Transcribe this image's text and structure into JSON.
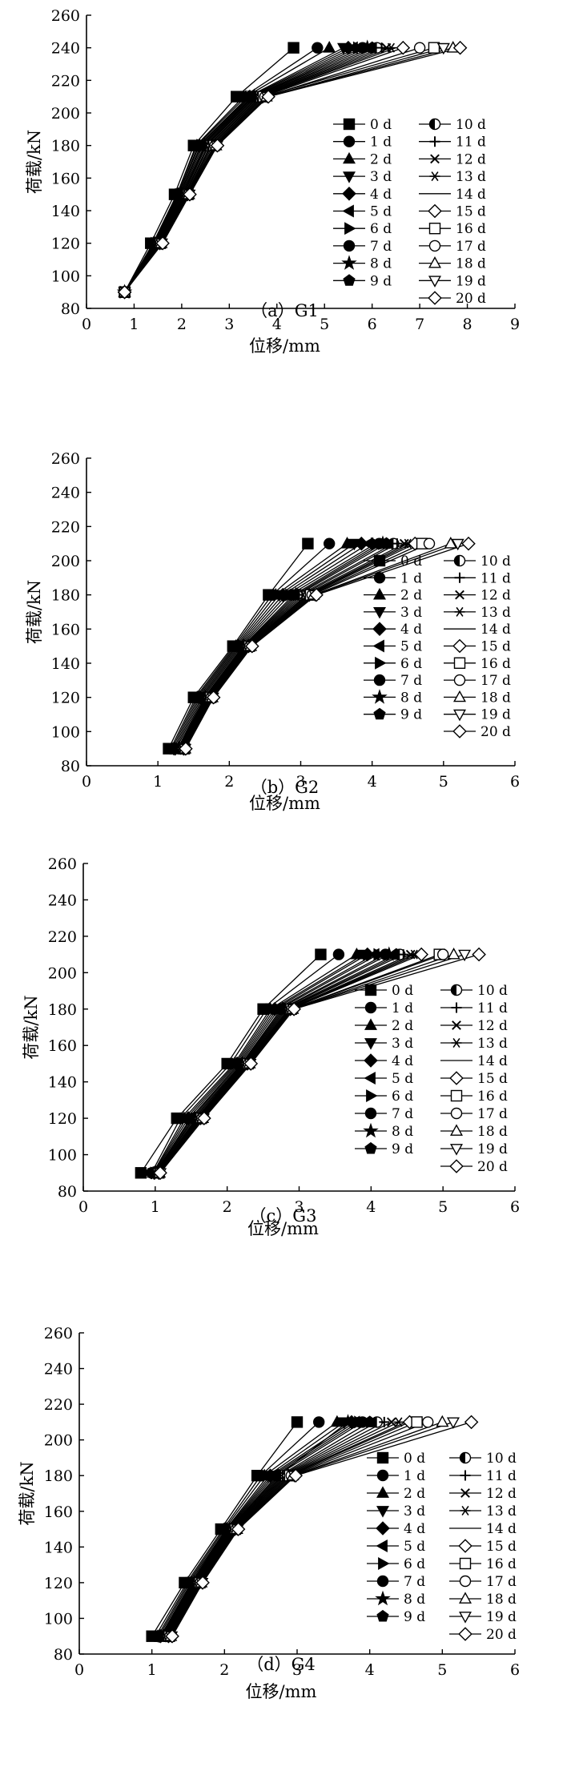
{
  "figure": {
    "marker_order": [
      "square",
      "circle",
      "triangle-up",
      "triangle-down",
      "diamond",
      "triangle-left",
      "triangle-right",
      "circle",
      "star",
      "pentagon",
      "half-circle",
      "plus",
      "cross",
      "asterisk",
      "none",
      "open-diamond",
      "open-square",
      "open-circle",
      "open-triangle-up",
      "open-triangle-down",
      "open-diamond"
    ]
  },
  "chart_data": [
    {
      "type": "line",
      "caption": "（a）G1",
      "xlabel": "位移/mm",
      "ylabel": "荷载/kN",
      "xlim": [
        0,
        9
      ],
      "ylim": [
        80,
        260
      ],
      "xticks": [
        0,
        1,
        2,
        3,
        4,
        5,
        6,
        7,
        8,
        9
      ],
      "yticks": [
        80,
        100,
        120,
        140,
        160,
        180,
        200,
        220,
        240,
        260
      ],
      "x_tick_labels": [
        "0",
        "1",
        "2",
        "3",
        "4",
        "5",
        "6",
        "7",
        "8",
        "9"
      ],
      "y_tick_labels": [
        "80",
        "100",
        "120",
        "140",
        "160",
        "180",
        "200",
        "220",
        "240",
        "260"
      ],
      "legend_position": "right",
      "legend_labels": [
        "0 d",
        "1 d",
        "2 d",
        "3 d",
        "4 d",
        "5 d",
        "6 d",
        "7 d",
        "8 d",
        "9 d",
        "10 d",
        "11 d",
        "12 d",
        "13 d",
        "14 d",
        "15 d",
        "16 d",
        "17 d",
        "18 d",
        "19 d",
        "20 d"
      ],
      "loads": [
        90,
        120,
        150,
        180,
        210,
        240
      ],
      "series": [
        {
          "name": "0 d",
          "x": [
            0.8,
            1.35,
            1.85,
            2.25,
            3.15,
            4.35
          ]
        },
        {
          "name": "1 d",
          "x": [
            0.8,
            1.4,
            1.9,
            2.3,
            3.3,
            4.85
          ]
        },
        {
          "name": "2 d",
          "x": [
            0.8,
            1.4,
            1.9,
            2.32,
            3.35,
            5.1
          ]
        },
        {
          "name": "3 d",
          "x": [
            0.8,
            1.42,
            1.92,
            2.35,
            3.4,
            5.4
          ]
        },
        {
          "name": "4 d",
          "x": [
            0.8,
            1.43,
            1.93,
            2.37,
            3.43,
            5.5
          ]
        },
        {
          "name": "5 d",
          "x": [
            0.8,
            1.44,
            1.95,
            2.4,
            3.45,
            5.6
          ]
        },
        {
          "name": "6 d",
          "x": [
            0.8,
            1.45,
            1.96,
            2.42,
            3.48,
            5.7
          ]
        },
        {
          "name": "7 d",
          "x": [
            0.8,
            1.46,
            1.98,
            2.45,
            3.5,
            5.8
          ]
        },
        {
          "name": "8 d",
          "x": [
            0.8,
            1.47,
            2.0,
            2.48,
            3.52,
            5.9
          ]
        },
        {
          "name": "9 d",
          "x": [
            0.8,
            1.48,
            2.02,
            2.5,
            3.55,
            6.0
          ]
        },
        {
          "name": "10 d",
          "x": [
            0.8,
            1.49,
            2.04,
            2.52,
            3.57,
            6.1
          ]
        },
        {
          "name": "11 d",
          "x": [
            0.8,
            1.5,
            2.06,
            2.55,
            3.6,
            6.2
          ]
        },
        {
          "name": "12 d",
          "x": [
            0.8,
            1.51,
            2.08,
            2.57,
            3.62,
            6.3
          ]
        },
        {
          "name": "13 d",
          "x": [
            0.8,
            1.52,
            2.1,
            2.6,
            3.65,
            6.4
          ]
        },
        {
          "name": "14 d",
          "x": [
            0.8,
            1.53,
            2.11,
            2.62,
            3.67,
            6.5
          ]
        },
        {
          "name": "15 d",
          "x": [
            0.8,
            1.54,
            2.12,
            2.65,
            3.7,
            6.65
          ]
        },
        {
          "name": "16 d",
          "x": [
            0.8,
            1.55,
            2.13,
            2.68,
            3.72,
            7.3
          ]
        },
        {
          "name": "17 d",
          "x": [
            0.8,
            1.56,
            2.14,
            2.7,
            3.75,
            7.0
          ]
        },
        {
          "name": "18 d",
          "x": [
            0.8,
            1.57,
            2.15,
            2.72,
            3.78,
            7.7
          ]
        },
        {
          "name": "19 d",
          "x": [
            0.8,
            1.58,
            2.16,
            2.74,
            3.8,
            7.5
          ]
        },
        {
          "name": "20 d",
          "x": [
            0.8,
            1.6,
            2.17,
            2.75,
            3.82,
            7.85
          ]
        }
      ]
    },
    {
      "type": "line",
      "caption": "（b）G2",
      "xlabel": "位移/mm",
      "ylabel": "荷载/kN",
      "xlim": [
        0,
        6
      ],
      "ylim": [
        80,
        260
      ],
      "xticks": [
        0,
        1,
        2,
        3,
        4,
        5,
        6
      ],
      "yticks": [
        80,
        100,
        120,
        140,
        160,
        180,
        200,
        220,
        240,
        260
      ],
      "x_tick_labels": [
        "0",
        "1",
        "2",
        "3",
        "4",
        "5",
        "6"
      ],
      "y_tick_labels": [
        "80",
        "100",
        "120",
        "140",
        "160",
        "180",
        "200",
        "220",
        "240",
        "260"
      ],
      "legend_position": "right",
      "legend_labels": [
        "0 d",
        "1 d",
        "2 d",
        "3 d",
        "4 d",
        "5 d",
        "6 d",
        "7 d",
        "8 d",
        "9 d",
        "10 d",
        "11 d",
        "12 d",
        "13 d",
        "14 d",
        "15 d",
        "16 d",
        "17 d",
        "18 d",
        "19 d",
        "20 d"
      ],
      "loads": [
        90,
        120,
        150,
        180,
        210
      ],
      "series": [
        {
          "name": "0 d",
          "x": [
            1.15,
            1.5,
            2.05,
            2.55,
            3.1
          ]
        },
        {
          "name": "1 d",
          "x": [
            1.18,
            1.53,
            2.07,
            2.6,
            3.4
          ]
        },
        {
          "name": "2 d",
          "x": [
            1.2,
            1.55,
            2.09,
            2.65,
            3.65
          ]
        },
        {
          "name": "3 d",
          "x": [
            1.22,
            1.57,
            2.11,
            2.7,
            3.75
          ]
        },
        {
          "name": "4 d",
          "x": [
            1.24,
            1.59,
            2.13,
            2.75,
            3.85
          ]
        },
        {
          "name": "5 d",
          "x": [
            1.26,
            1.61,
            2.15,
            2.8,
            3.95
          ]
        },
        {
          "name": "6 d",
          "x": [
            1.28,
            1.63,
            2.17,
            2.85,
            4.05
          ]
        },
        {
          "name": "7 d",
          "x": [
            1.29,
            1.65,
            2.19,
            2.9,
            4.1
          ]
        },
        {
          "name": "8 d",
          "x": [
            1.3,
            1.66,
            2.2,
            2.93,
            4.15
          ]
        },
        {
          "name": "9 d",
          "x": [
            1.31,
            1.67,
            2.21,
            2.96,
            4.2
          ]
        },
        {
          "name": "10 d",
          "x": [
            1.32,
            1.68,
            2.22,
            2.99,
            4.3
          ]
        },
        {
          "name": "11 d",
          "x": [
            1.33,
            1.69,
            2.23,
            3.02,
            4.35
          ]
        },
        {
          "name": "12 d",
          "x": [
            1.34,
            1.7,
            2.24,
            3.05,
            4.45
          ]
        },
        {
          "name": "13 d",
          "x": [
            1.35,
            1.71,
            2.25,
            3.08,
            4.5
          ]
        },
        {
          "name": "14 d",
          "x": [
            1.36,
            1.72,
            2.26,
            3.1,
            4.55
          ]
        },
        {
          "name": "15 d",
          "x": [
            1.36,
            1.73,
            2.27,
            3.12,
            4.6
          ]
        },
        {
          "name": "16 d",
          "x": [
            1.37,
            1.74,
            2.28,
            3.14,
            4.7
          ]
        },
        {
          "name": "17 d",
          "x": [
            1.37,
            1.75,
            2.29,
            3.16,
            4.8
          ]
        },
        {
          "name": "18 d",
          "x": [
            1.38,
            1.76,
            2.3,
            3.18,
            5.1
          ]
        },
        {
          "name": "19 d",
          "x": [
            1.38,
            1.77,
            2.31,
            3.2,
            5.2
          ]
        },
        {
          "name": "20 d",
          "x": [
            1.39,
            1.78,
            2.32,
            3.22,
            5.35
          ]
        }
      ]
    },
    {
      "type": "line",
      "caption": "（c）G3",
      "xlabel": "位移/mm",
      "ylabel": "荷载/kN",
      "xlim": [
        0,
        6
      ],
      "ylim": [
        80,
        260
      ],
      "xticks": [
        0,
        1,
        2,
        3,
        4,
        5,
        6
      ],
      "yticks": [
        80,
        100,
        120,
        140,
        160,
        180,
        200,
        220,
        240,
        260
      ],
      "x_tick_labels": [
        "0",
        "1",
        "2",
        "3",
        "4",
        "5",
        "6"
      ],
      "y_tick_labels": [
        "80",
        "100",
        "120",
        "140",
        "160",
        "180",
        "200",
        "220",
        "240",
        "260"
      ],
      "legend_position": "right",
      "legend_labels": [
        "0 d",
        "1 d",
        "2 d",
        "3 d",
        "4 d",
        "5 d",
        "6 d",
        "7 d",
        "8 d",
        "9 d",
        "10 d",
        "11 d",
        "12 d",
        "13 d",
        "14 d",
        "15 d",
        "16 d",
        "17 d",
        "18 d",
        "19 d",
        "20 d"
      ],
      "loads": [
        90,
        120,
        150,
        180,
        210
      ],
      "series": [
        {
          "name": "0 d",
          "x": [
            0.8,
            1.3,
            2.0,
            2.5,
            3.3
          ]
        },
        {
          "name": "1 d",
          "x": [
            0.95,
            1.35,
            2.05,
            2.55,
            3.55
          ]
        },
        {
          "name": "2 d",
          "x": [
            0.97,
            1.4,
            2.1,
            2.6,
            3.8
          ]
        },
        {
          "name": "3 d",
          "x": [
            0.98,
            1.43,
            2.12,
            2.63,
            3.9
          ]
        },
        {
          "name": "4 d",
          "x": [
            0.99,
            1.46,
            2.14,
            2.66,
            3.95
          ]
        },
        {
          "name": "5 d",
          "x": [
            1.0,
            1.49,
            2.16,
            2.69,
            4.05
          ]
        },
        {
          "name": "6 d",
          "x": [
            1.0,
            1.51,
            2.18,
            2.72,
            4.1
          ]
        },
        {
          "name": "7 d",
          "x": [
            1.01,
            1.53,
            2.2,
            2.75,
            4.2
          ]
        },
        {
          "name": "8 d",
          "x": [
            1.01,
            1.55,
            2.21,
            2.77,
            4.25
          ]
        },
        {
          "name": "9 d",
          "x": [
            1.02,
            1.57,
            2.22,
            2.79,
            4.35
          ]
        },
        {
          "name": "10 d",
          "x": [
            1.02,
            1.58,
            2.23,
            2.81,
            4.4
          ]
        },
        {
          "name": "11 d",
          "x": [
            1.03,
            1.59,
            2.24,
            2.83,
            4.45
          ]
        },
        {
          "name": "12 d",
          "x": [
            1.03,
            1.6,
            2.25,
            2.85,
            4.55
          ]
        },
        {
          "name": "13 d",
          "x": [
            1.04,
            1.61,
            2.26,
            2.86,
            4.6
          ]
        },
        {
          "name": "14 d",
          "x": [
            1.04,
            1.62,
            2.27,
            2.87,
            4.65
          ]
        },
        {
          "name": "15 d",
          "x": [
            1.05,
            1.63,
            2.28,
            2.88,
            4.7
          ]
        },
        {
          "name": "16 d",
          "x": [
            1.05,
            1.64,
            2.29,
            2.89,
            4.95
          ]
        },
        {
          "name": "17 d",
          "x": [
            1.06,
            1.65,
            2.3,
            2.9,
            5.0
          ]
        },
        {
          "name": "18 d",
          "x": [
            1.06,
            1.66,
            2.31,
            2.91,
            5.15
          ]
        },
        {
          "name": "19 d",
          "x": [
            1.07,
            1.67,
            2.32,
            2.92,
            5.3
          ]
        },
        {
          "name": "20 d",
          "x": [
            1.07,
            1.68,
            2.33,
            2.93,
            5.5
          ]
        }
      ]
    },
    {
      "type": "line",
      "caption": "（d）G4",
      "xlabel": "位移/mm",
      "ylabel": "荷载/kN",
      "xlim": [
        0,
        6
      ],
      "ylim": [
        80,
        260
      ],
      "xticks": [
        0,
        1,
        2,
        3,
        4,
        5,
        6
      ],
      "yticks": [
        80,
        100,
        120,
        140,
        160,
        180,
        200,
        220,
        240,
        260
      ],
      "x_tick_labels": [
        "0",
        "1",
        "2",
        "3",
        "4",
        "5",
        "6"
      ],
      "y_tick_labels": [
        "80",
        "100",
        "120",
        "140",
        "160",
        "180",
        "200",
        "220",
        "240",
        "260"
      ],
      "legend_position": "right",
      "legend_labels": [
        "0 d",
        "1 d",
        "2 d",
        "3 d",
        "4 d",
        "5 d",
        "6 d",
        "7 d",
        "8 d",
        "9 d",
        "10 d",
        "11 d",
        "12 d",
        "13 d",
        "14 d",
        "15 d",
        "16 d",
        "17 d",
        "18 d",
        "19 d",
        "20 d"
      ],
      "loads": [
        90,
        120,
        150,
        180,
        210
      ],
      "series": [
        {
          "name": "0 d",
          "x": [
            1.0,
            1.45,
            1.95,
            2.45,
            3.0
          ]
        },
        {
          "name": "1 d",
          "x": [
            1.05,
            1.48,
            1.98,
            2.5,
            3.3
          ]
        },
        {
          "name": "2 d",
          "x": [
            1.08,
            1.5,
            2.0,
            2.55,
            3.55
          ]
        },
        {
          "name": "3 d",
          "x": [
            1.1,
            1.52,
            2.02,
            2.6,
            3.65
          ]
        },
        {
          "name": "4 d",
          "x": [
            1.12,
            1.54,
            2.03,
            2.63,
            3.75
          ]
        },
        {
          "name": "5 d",
          "x": [
            1.13,
            1.55,
            2.04,
            2.66,
            3.8
          ]
        },
        {
          "name": "6 d",
          "x": [
            1.14,
            1.56,
            2.05,
            2.69,
            3.85
          ]
        },
        {
          "name": "7 d",
          "x": [
            1.15,
            1.57,
            2.06,
            2.72,
            3.9
          ]
        },
        {
          "name": "8 d",
          "x": [
            1.16,
            1.58,
            2.07,
            2.74,
            3.7
          ]
        },
        {
          "name": "9 d",
          "x": [
            1.17,
            1.59,
            2.08,
            2.76,
            4.0
          ]
        },
        {
          "name": "10 d",
          "x": [
            1.18,
            1.6,
            2.09,
            2.78,
            4.1
          ]
        },
        {
          "name": "11 d",
          "x": [
            1.19,
            1.61,
            2.1,
            2.8,
            4.2
          ]
        },
        {
          "name": "12 d",
          "x": [
            1.2,
            1.62,
            2.11,
            2.82,
            4.3
          ]
        },
        {
          "name": "13 d",
          "x": [
            1.21,
            1.63,
            2.12,
            2.84,
            4.4
          ]
        },
        {
          "name": "14 d",
          "x": [
            1.22,
            1.64,
            2.13,
            2.86,
            4.5
          ]
        },
        {
          "name": "15 d",
          "x": [
            1.23,
            1.65,
            2.14,
            2.88,
            4.55
          ]
        },
        {
          "name": "16 d",
          "x": [
            1.24,
            1.66,
            2.15,
            2.9,
            4.65
          ]
        },
        {
          "name": "17 d",
          "x": [
            1.25,
            1.67,
            2.16,
            2.92,
            4.8
          ]
        },
        {
          "name": "18 d",
          "x": [
            1.26,
            1.68,
            2.17,
            2.94,
            5.0
          ]
        },
        {
          "name": "19 d",
          "x": [
            1.27,
            1.69,
            2.18,
            2.96,
            5.15
          ]
        },
        {
          "name": "20 d",
          "x": [
            1.28,
            1.7,
            2.19,
            2.98,
            5.4
          ]
        }
      ]
    }
  ]
}
